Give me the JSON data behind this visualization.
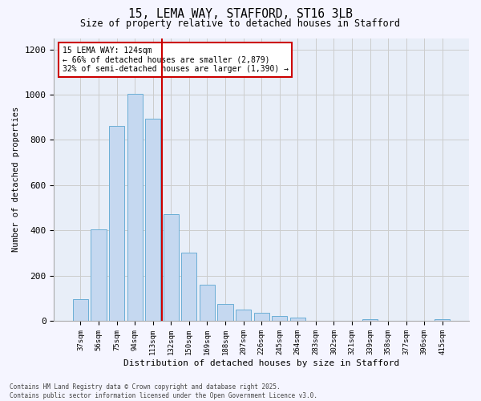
{
  "title_line1": "15, LEMA WAY, STAFFORD, ST16 3LB",
  "title_line2": "Size of property relative to detached houses in Stafford",
  "xlabel": "Distribution of detached houses by size in Stafford",
  "ylabel": "Number of detached properties",
  "categories": [
    "37sqm",
    "56sqm",
    "75sqm",
    "94sqm",
    "113sqm",
    "132sqm",
    "150sqm",
    "169sqm",
    "188sqm",
    "207sqm",
    "226sqm",
    "245sqm",
    "264sqm",
    "283sqm",
    "302sqm",
    "321sqm",
    "339sqm",
    "358sqm",
    "377sqm",
    "396sqm",
    "415sqm"
  ],
  "values": [
    95,
    405,
    860,
    1005,
    895,
    470,
    300,
    160,
    75,
    50,
    35,
    20,
    15,
    0,
    0,
    0,
    8,
    0,
    0,
    0,
    8
  ],
  "bar_color": "#c5d8f0",
  "bar_edge_color": "#6baed6",
  "red_line_x": 4.5,
  "annotation_text": "15 LEMA WAY: 124sqm\n← 66% of detached houses are smaller (2,879)\n32% of semi-detached houses are larger (1,390) →",
  "annotation_box_color": "#ffffff",
  "annotation_box_edge_color": "#cc0000",
  "red_line_color": "#cc0000",
  "ylim": [
    0,
    1250
  ],
  "yticks": [
    0,
    200,
    400,
    600,
    800,
    1000,
    1200
  ],
  "grid_color": "#cccccc",
  "background_color": "#e8eef8",
  "fig_background_color": "#f5f5ff",
  "footer_line1": "Contains HM Land Registry data © Crown copyright and database right 2025.",
  "footer_line2": "Contains public sector information licensed under the Open Government Licence v3.0."
}
